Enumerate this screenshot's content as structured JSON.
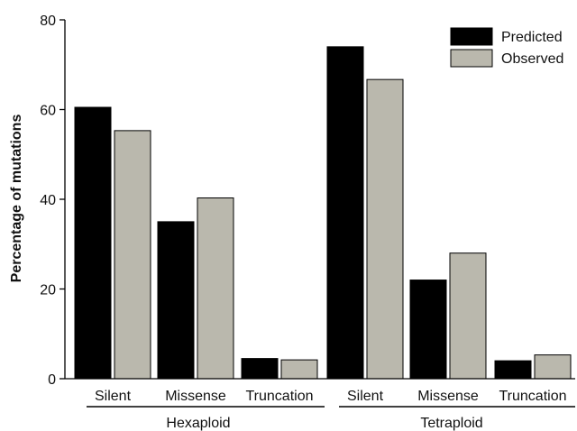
{
  "chart_data": {
    "type": "bar",
    "title": "",
    "xlabel": "",
    "ylabel": "Percentage of mutations",
    "ylim": [
      0,
      80
    ],
    "yticks": [
      0,
      20,
      40,
      60,
      80
    ],
    "groups": [
      {
        "label": "Hexaploid",
        "categories": [
          "Silent",
          "Missense",
          "Truncation"
        ]
      },
      {
        "label": "Tetraploid",
        "categories": [
          "Silent",
          "Missense",
          "Truncation"
        ]
      }
    ],
    "series": [
      {
        "name": "Predicted",
        "color": "#000000",
        "values": [
          60.5,
          35.0,
          4.5,
          74.0,
          22.0,
          4.0
        ]
      },
      {
        "name": "Observed",
        "color": "#bab8ad",
        "values": [
          55.3,
          40.3,
          4.2,
          66.7,
          28.0,
          5.3
        ]
      }
    ],
    "legend_position": "top-right",
    "grid": false
  }
}
